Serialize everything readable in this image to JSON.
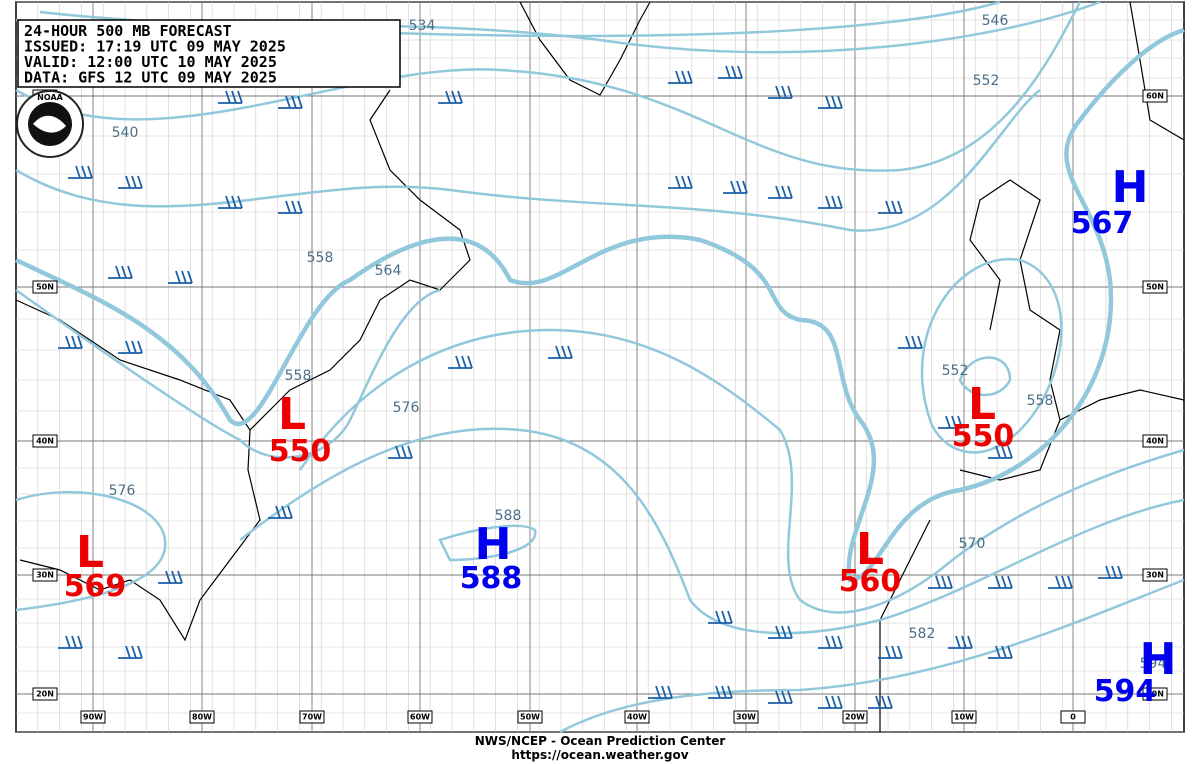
{
  "header": {
    "lines": [
      "24-HOUR 500 MB FORECAST",
      "ISSUED: 17:19 UTC 09 MAY 2025",
      "VALID:  12:00 UTC 10 MAY 2025",
      "DATA:   GFS 12 UTC 09 MAY 2025"
    ]
  },
  "logo": "NOAA",
  "centers": [
    {
      "type": "L",
      "value": 550
    },
    {
      "type": "L",
      "value": 550
    },
    {
      "type": "L",
      "value": 560
    },
    {
      "type": "L",
      "value": 569
    },
    {
      "type": "H",
      "value": 588
    },
    {
      "type": "H",
      "value": 567
    },
    {
      "type": "H",
      "value": 594
    }
  ],
  "contour_labels": [
    534,
    540,
    546,
    552,
    558,
    564,
    558,
    576,
    576,
    588,
    552,
    558,
    570,
    582,
    594
  ],
  "lat_labels": [
    "60N",
    "50N",
    "40N",
    "30N",
    "20N"
  ],
  "lon_labels": [
    "90W",
    "80W",
    "70W",
    "60W",
    "50W",
    "40W",
    "30W",
    "20W",
    "10W",
    "0"
  ],
  "footer": {
    "line1": "NWS/NCEP - Ocean Prediction Center",
    "line2": "https://ocean.weather.gov"
  }
}
